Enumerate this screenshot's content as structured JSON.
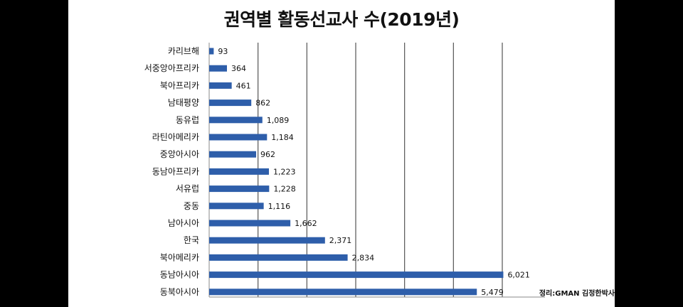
{
  "chart_data": {
    "type": "bar",
    "orientation": "horizontal",
    "title": "권역별  활동선교사 수(2019년)",
    "categories": [
      "카리브해",
      "서중앙아프리카",
      "북아프리카",
      "남태평양",
      "동유럽",
      "라틴아메리카",
      "중앙아시아",
      "동남아프리카",
      "서유럽",
      "중동",
      "남아시아",
      "한국",
      "북아메리카",
      "동남아시아",
      "동북아시아"
    ],
    "values": [
      93,
      364,
      461,
      862,
      1089,
      1184,
      962,
      1223,
      1228,
      1116,
      1662,
      2371,
      2834,
      6021,
      5479
    ],
    "value_labels": [
      "93",
      "364",
      "461",
      "862",
      "1,089",
      "1,184",
      "962",
      "1,223",
      "1,228",
      "1,116",
      "1,662",
      "2,371",
      "2,834",
      "6,021",
      "5,479"
    ],
    "xlim": [
      0,
      6000
    ],
    "grid": true,
    "bar_color": "#2E5EAA",
    "grid_color": "#555555"
  },
  "credit": "정리:GMAN 김정한박사"
}
